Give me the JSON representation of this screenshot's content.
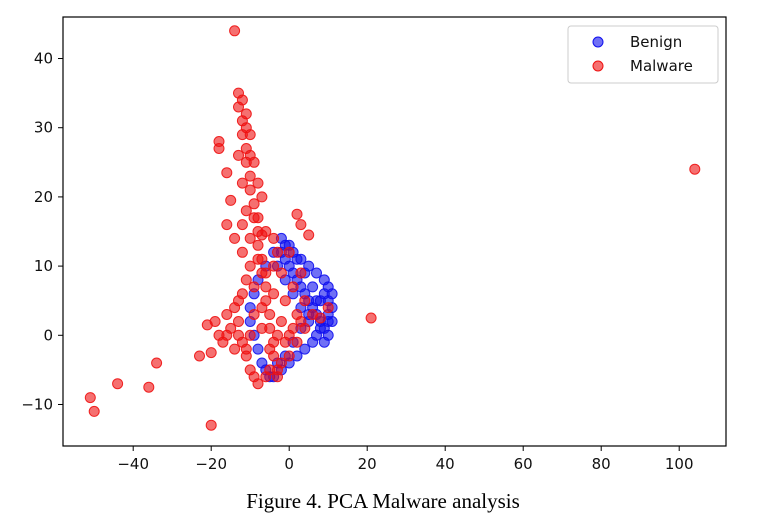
{
  "caption": "Figure 4. PCA Malware analysis",
  "chart_data": {
    "type": "scatter",
    "title": "",
    "xlabel": "",
    "ylabel": "",
    "xlim": [
      -58,
      112
    ],
    "ylim": [
      -16,
      46
    ],
    "xticks": [
      -40,
      -20,
      0,
      20,
      40,
      60,
      80,
      100
    ],
    "yticks": [
      -10,
      0,
      10,
      20,
      30,
      40
    ],
    "grid": false,
    "legend_position": "top-right",
    "series": [
      {
        "name": "Benign",
        "color": "#1010ee",
        "points": [
          [
            -2,
            12
          ],
          [
            -1,
            11
          ],
          [
            0,
            10
          ],
          [
            1,
            9
          ],
          [
            2,
            8
          ],
          [
            3,
            7
          ],
          [
            4,
            6
          ],
          [
            5,
            5
          ],
          [
            6,
            4
          ],
          [
            7,
            3
          ],
          [
            8,
            2
          ],
          [
            9,
            1
          ],
          [
            10,
            0
          ],
          [
            -3,
            10
          ],
          [
            -1,
            8
          ],
          [
            1,
            6
          ],
          [
            3,
            4
          ],
          [
            5,
            2
          ],
          [
            7,
            0
          ],
          [
            9,
            -1
          ],
          [
            10,
            5
          ],
          [
            11,
            4
          ],
          [
            11,
            2
          ],
          [
            10,
            3
          ],
          [
            8,
            5
          ],
          [
            6,
            7
          ],
          [
            4,
            9
          ],
          [
            2,
            11
          ],
          [
            0,
            13
          ],
          [
            -2,
            14
          ],
          [
            -4,
            12
          ],
          [
            -6,
            10
          ],
          [
            -8,
            8
          ],
          [
            -9,
            6
          ],
          [
            -10,
            4
          ],
          [
            -10,
            2
          ],
          [
            -9,
            0
          ],
          [
            -8,
            -2
          ],
          [
            -7,
            -4
          ],
          [
            -6,
            -5
          ],
          [
            -4,
            -6
          ],
          [
            -2,
            -5
          ],
          [
            0,
            -4
          ],
          [
            2,
            -3
          ],
          [
            4,
            -2
          ],
          [
            6,
            -1
          ],
          [
            8,
            1
          ],
          [
            10,
            2
          ],
          [
            -5,
            -6
          ],
          [
            -3,
            -4
          ],
          [
            -1,
            -3
          ],
          [
            1,
            -1
          ],
          [
            3,
            1
          ],
          [
            5,
            3
          ],
          [
            7,
            5
          ],
          [
            9,
            6
          ],
          [
            11,
            6
          ],
          [
            10,
            7
          ],
          [
            9,
            8
          ],
          [
            7,
            9
          ],
          [
            5,
            10
          ],
          [
            3,
            11
          ],
          [
            1,
            12
          ],
          [
            -1,
            13
          ]
        ]
      },
      {
        "name": "Malware",
        "color": "#ee1111",
        "points": [
          [
            -14,
            44
          ],
          [
            104,
            24
          ],
          [
            21,
            2.5
          ],
          [
            -51,
            -9
          ],
          [
            -50,
            -11
          ],
          [
            -44,
            -7
          ],
          [
            -36,
            -7.5
          ],
          [
            -34,
            -4
          ],
          [
            -20,
            -13
          ],
          [
            -23,
            -3
          ],
          [
            -20,
            -2.5
          ],
          [
            -18,
            0
          ],
          [
            -18,
            28
          ],
          [
            -18,
            27
          ],
          [
            -16,
            23.5
          ],
          [
            -15,
            19.5
          ],
          [
            -12,
            16
          ],
          [
            -8,
            17
          ],
          [
            -7,
            14.5
          ],
          [
            -16,
            16
          ],
          [
            -14,
            14
          ],
          [
            -12,
            12
          ],
          [
            -6,
            15
          ],
          [
            -4,
            14
          ],
          [
            2,
            17.5
          ],
          [
            3,
            16
          ],
          [
            5,
            14.5
          ],
          [
            0,
            12
          ],
          [
            -13,
            35
          ],
          [
            -13,
            33
          ],
          [
            -12,
            31
          ],
          [
            -12,
            29
          ],
          [
            -11,
            27
          ],
          [
            -11,
            25
          ],
          [
            -10,
            23
          ],
          [
            -10,
            21
          ],
          [
            -9,
            19
          ],
          [
            -9,
            17
          ],
          [
            -8,
            15
          ],
          [
            -8,
            13
          ],
          [
            -7,
            11
          ],
          [
            -7,
            9
          ],
          [
            -6,
            7
          ],
          [
            -6,
            5
          ],
          [
            -5,
            3
          ],
          [
            -5,
            1
          ],
          [
            -4,
            -1
          ],
          [
            -4,
            -3
          ],
          [
            -3,
            -5
          ],
          [
            -3,
            -6
          ],
          [
            -10,
            10
          ],
          [
            -11,
            8
          ],
          [
            -12,
            6
          ],
          [
            -13,
            5
          ],
          [
            -14,
            4
          ],
          [
            -16,
            3
          ],
          [
            -19,
            2
          ],
          [
            -21,
            1.5
          ],
          [
            -15,
            1
          ],
          [
            -13,
            0
          ],
          [
            -12,
            -1
          ],
          [
            -11,
            -3
          ],
          [
            -10,
            -5
          ],
          [
            -9,
            -6
          ],
          [
            -8,
            -7
          ],
          [
            -6,
            -6
          ],
          [
            -5,
            -5
          ],
          [
            -2,
            -4
          ],
          [
            0,
            -3
          ],
          [
            2,
            -1
          ],
          [
            4,
            1
          ],
          [
            6,
            3
          ],
          [
            8,
            2.5
          ],
          [
            10,
            4
          ],
          [
            -1,
            5
          ],
          [
            1,
            7
          ],
          [
            3,
            9
          ],
          [
            -2,
            9
          ],
          [
            -4,
            10
          ],
          [
            -3,
            12
          ],
          [
            -9,
            25
          ],
          [
            -8,
            22
          ],
          [
            -7,
            20
          ],
          [
            -10,
            29
          ],
          [
            -11,
            32
          ],
          [
            -12,
            34
          ],
          [
            -8,
            11
          ],
          [
            -6,
            9
          ],
          [
            -4,
            6
          ],
          [
            -2,
            2
          ],
          [
            0,
            0
          ],
          [
            2,
            3
          ],
          [
            4,
            5
          ],
          [
            -9,
            3
          ],
          [
            -10,
            0
          ],
          [
            -11,
            -2
          ],
          [
            -7,
            1
          ],
          [
            -5,
            -2
          ],
          [
            -3,
            0
          ],
          [
            -1,
            -1
          ],
          [
            1,
            1
          ],
          [
            3,
            2
          ],
          [
            -13,
            2
          ],
          [
            -16,
            0
          ],
          [
            -17,
            -1
          ],
          [
            -14,
            -2
          ],
          [
            -7,
            4
          ],
          [
            -9,
            7
          ],
          [
            -10,
            14
          ],
          [
            -11,
            18
          ],
          [
            -12,
            22
          ],
          [
            -13,
            26
          ],
          [
            -11,
            30
          ],
          [
            -10,
            26
          ]
        ]
      }
    ]
  }
}
